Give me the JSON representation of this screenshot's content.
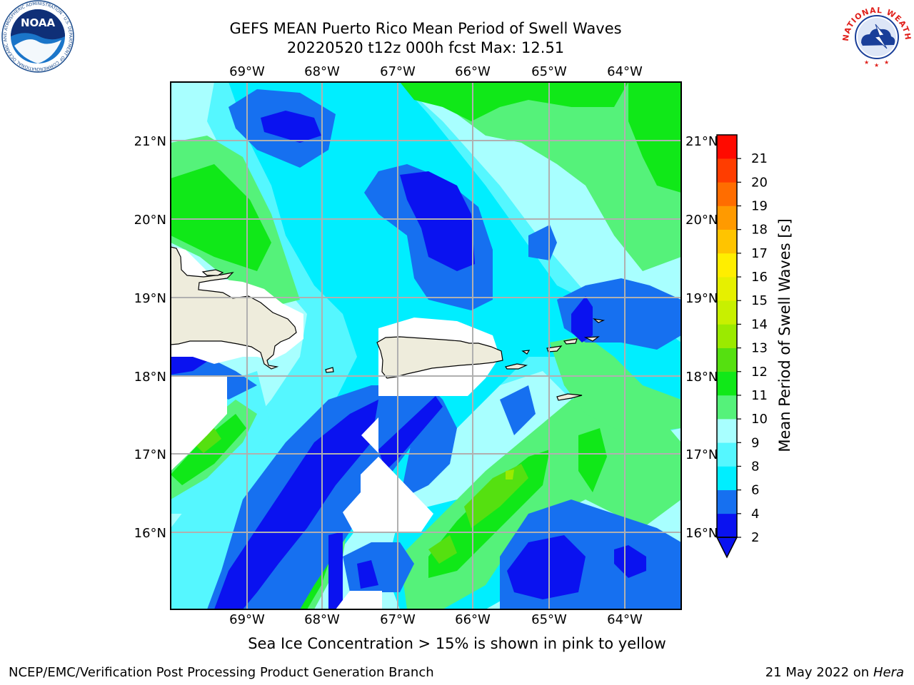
{
  "title": {
    "line1": "GEFS MEAN Puerto Rico Mean Period of Swell Waves",
    "line2": "20220520 t12z 000h fcst   Max: 12.51"
  },
  "map": {
    "lon_labels": [
      "69°W",
      "68°W",
      "67°W",
      "66°W",
      "65°W",
      "64°W"
    ],
    "lat_labels": [
      "21°N",
      "20°N",
      "19°N",
      "18°N",
      "17°N",
      "16°N"
    ],
    "lon_range": [
      -70.0,
      -63.25
    ],
    "lat_range": [
      15.0,
      21.75
    ],
    "land_color": "#eeecdc"
  },
  "colorbar": {
    "label": "Mean Period of Swell Waves [s]",
    "ticks": [
      "2",
      "4",
      "6",
      "8",
      "9",
      "10",
      "11",
      "12",
      "13",
      "14",
      "15",
      "16",
      "17",
      "18",
      "19",
      "20",
      "21"
    ],
    "colors": [
      "#0a12f0",
      "#1670f0",
      "#00eeff",
      "#55f7ff",
      "#a8ffff",
      "#55f27a",
      "#10e818",
      "#55e010",
      "#9bea00",
      "#c8f000",
      "#e6f000",
      "#ffee00",
      "#ffc400",
      "#ff9a00",
      "#ff6d00",
      "#ff3d00",
      "#ff0a00"
    ],
    "extend_color": "#0a12f0"
  },
  "footer": {
    "sea_ice": "Sea Ice Concentration > 15% is shown in pink to yellow",
    "branch": "NCEP/EMC/Verification Post Processing Product Generation Branch",
    "date": "21 May 2022 on",
    "host": "Hera"
  },
  "logos": {
    "noaa": {
      "text": "NOAA",
      "ring_text": "NATIONAL OCEANIC AND ATMOSPHERIC ADMINISTRATION · U.S. DEPARTMENT OF COMMERCE"
    },
    "nws": {
      "ring_text": "NATIONAL WEATHER SERVICE"
    }
  }
}
